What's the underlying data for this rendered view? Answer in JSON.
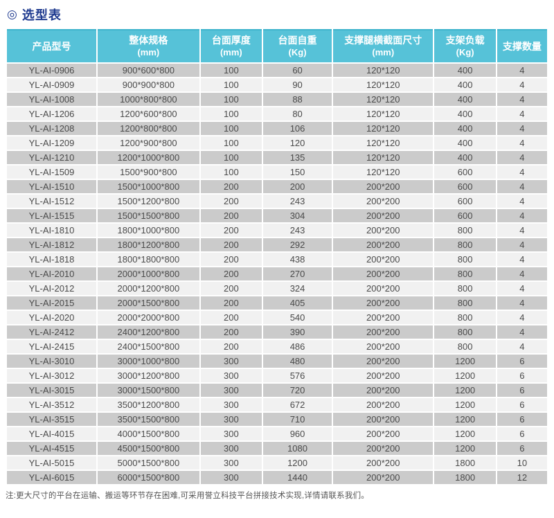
{
  "page": {
    "title_icon": "◎",
    "title_text": "选型表",
    "footnote": "注:更大尺寸的平台在运输、搬运等环节存在困难,可采用誉立科技平台拼接技术实现,详情请联系我们。"
  },
  "colors": {
    "header_bg": "#56c2d8",
    "header_text": "#ffffff",
    "row_dark": "#cbcbcb",
    "row_light": "#f1f1f1",
    "title_text": "#1e3a8f",
    "cell_text": "#4a4a4a"
  },
  "table": {
    "columns": [
      {
        "label": "产品型号",
        "unit": ""
      },
      {
        "label": "整体规格",
        "unit": "(mm)"
      },
      {
        "label": "台面厚度",
        "unit": "(mm)"
      },
      {
        "label": "台面自重",
        "unit": "(Kg)"
      },
      {
        "label": "支撑腿横截面尺寸",
        "unit": "(mm)"
      },
      {
        "label": "支架负载",
        "unit": "(Kg)"
      },
      {
        "label": "支撑数量",
        "unit": ""
      }
    ],
    "rows": [
      [
        "YL-AI-0906",
        "900*600*800",
        "100",
        "60",
        "120*120",
        "400",
        "4"
      ],
      [
        "YL-AI-0909",
        "900*900*800",
        "100",
        "90",
        "120*120",
        "400",
        "4"
      ],
      [
        "YL-AI-1008",
        "1000*800*800",
        "100",
        "88",
        "120*120",
        "400",
        "4"
      ],
      [
        "YL-AI-1206",
        "1200*600*800",
        "100",
        "80",
        "120*120",
        "400",
        "4"
      ],
      [
        "YL-AI-1208",
        "1200*800*800",
        "100",
        "106",
        "120*120",
        "400",
        "4"
      ],
      [
        "YL-AI-1209",
        "1200*900*800",
        "100",
        "120",
        "120*120",
        "400",
        "4"
      ],
      [
        "YL-AI-1210",
        "1200*1000*800",
        "100",
        "135",
        "120*120",
        "400",
        "4"
      ],
      [
        "YL-AI-1509",
        "1500*900*800",
        "100",
        "150",
        "120*120",
        "600",
        "4"
      ],
      [
        "YL-AI-1510",
        "1500*1000*800",
        "200",
        "200",
        "200*200",
        "600",
        "4"
      ],
      [
        "YL-AI-1512",
        "1500*1200*800",
        "200",
        "243",
        "200*200",
        "600",
        "4"
      ],
      [
        "YL-AI-1515",
        "1500*1500*800",
        "200",
        "304",
        "200*200",
        "600",
        "4"
      ],
      [
        "YL-AI-1810",
        "1800*1000*800",
        "200",
        "243",
        "200*200",
        "800",
        "4"
      ],
      [
        "YL-AI-1812",
        "1800*1200*800",
        "200",
        "292",
        "200*200",
        "800",
        "4"
      ],
      [
        "YL-AI-1818",
        "1800*1800*800",
        "200",
        "438",
        "200*200",
        "800",
        "4"
      ],
      [
        "YL-AI-2010",
        "2000*1000*800",
        "200",
        "270",
        "200*200",
        "800",
        "4"
      ],
      [
        "YL-AI-2012",
        "2000*1200*800",
        "200",
        "324",
        "200*200",
        "800",
        "4"
      ],
      [
        "YL-AI-2015",
        "2000*1500*800",
        "200",
        "405",
        "200*200",
        "800",
        "4"
      ],
      [
        "YL-AI-2020",
        "2000*2000*800",
        "200",
        "540",
        "200*200",
        "800",
        "4"
      ],
      [
        "YL-AI-2412",
        "2400*1200*800",
        "200",
        "390",
        "200*200",
        "800",
        "4"
      ],
      [
        "YL-AI-2415",
        "2400*1500*800",
        "200",
        "486",
        "200*200",
        "800",
        "4"
      ],
      [
        "YL-AI-3010",
        "3000*1000*800",
        "300",
        "480",
        "200*200",
        "1200",
        "6"
      ],
      [
        "YL-AI-3012",
        "3000*1200*800",
        "300",
        "576",
        "200*200",
        "1200",
        "6"
      ],
      [
        "YL-AI-3015",
        "3000*1500*800",
        "300",
        "720",
        "200*200",
        "1200",
        "6"
      ],
      [
        "YL-AI-3512",
        "3500*1200*800",
        "300",
        "672",
        "200*200",
        "1200",
        "6"
      ],
      [
        "YL-AI-3515",
        "3500*1500*800",
        "300",
        "710",
        "200*200",
        "1200",
        "6"
      ],
      [
        "YL-AI-4015",
        "4000*1500*800",
        "300",
        "960",
        "200*200",
        "1200",
        "6"
      ],
      [
        "YL-AI-4515",
        "4500*1500*800",
        "300",
        "1080",
        "200*200",
        "1200",
        "6"
      ],
      [
        "YL-AI-5015",
        "5000*1500*800",
        "300",
        "1200",
        "200*200",
        "1800",
        "10"
      ],
      [
        "YL-AI-6015",
        "6000*1500*800",
        "300",
        "1440",
        "200*200",
        "1800",
        "12"
      ]
    ]
  }
}
